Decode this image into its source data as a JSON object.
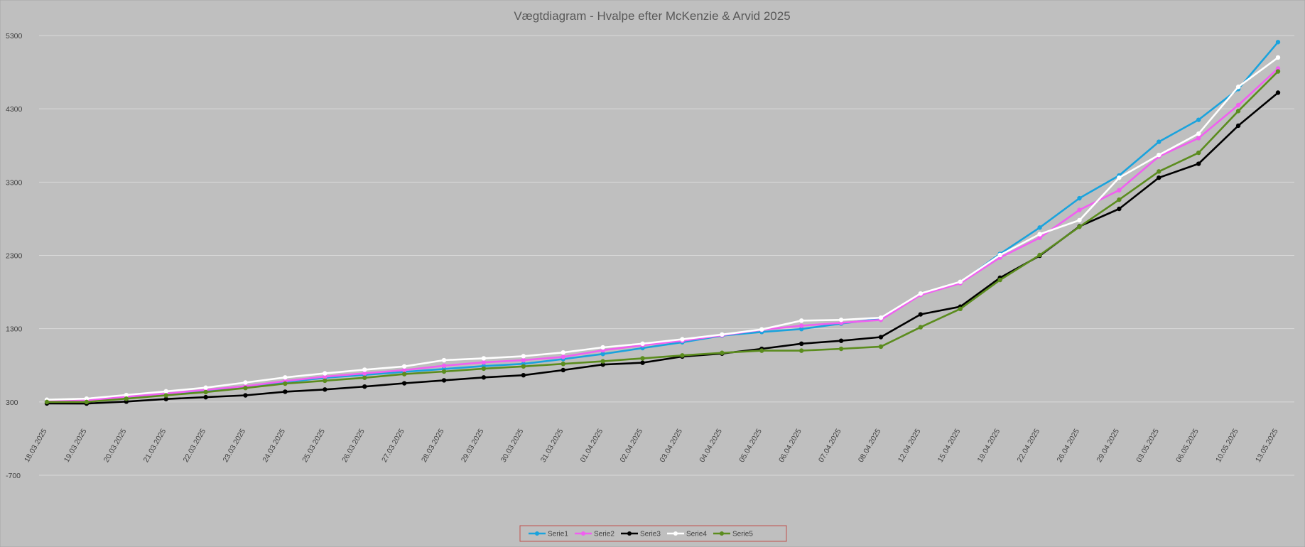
{
  "chart_data": {
    "type": "line",
    "title": "Vægtdiagram - Hvalpe efter McKenzie & Arvid 2025",
    "xlabel": "",
    "ylabel": "",
    "ylim": [
      -700,
      5300
    ],
    "yticks": [
      -700,
      300,
      1300,
      2300,
      3300,
      4300,
      5300
    ],
    "grid": true,
    "legend_position": "bottom",
    "background": "#bfbfbf",
    "categories": [
      "18.03.2025",
      "19.03.2025",
      "20.03.2025",
      "21.03.2025",
      "22.03.2025",
      "23.03.2025",
      "24.03.2025",
      "25.03.2025",
      "26.03.2025",
      "27.03.2025",
      "28.03.2025",
      "29.03.2025",
      "30.03.2025",
      "31.03.2025",
      "01.04.2025",
      "02.04.2025",
      "03.04.2025",
      "04.04.2025",
      "05.04.2025",
      "06.04.2025",
      "07.04.2025",
      "08.04.2025",
      "12.04.2025",
      "15.04.2025",
      "19.04.2025",
      "22.04.2025",
      "26.04.2025",
      "29.04.2025",
      "03.05.2025",
      "06.05.2025",
      "10.05.2025",
      "13.05.2025"
    ],
    "series": [
      {
        "name": "Serie1",
        "color": "#1aa3dd",
        "values": [
          310,
          318,
          360,
          400,
          450,
          505,
          570,
          630,
          670,
          710,
          750,
          790,
          820,
          885,
          955,
          1035,
          1115,
          1205,
          1255,
          1295,
          1370,
          1435,
          1770,
          1930,
          2320,
          2680,
          3080,
          3390,
          3850,
          4150,
          4570,
          5210
        ]
      },
      {
        "name": "Serie2",
        "color": "#f060f0",
        "values": [
          315,
          322,
          370,
          415,
          465,
          515,
          585,
          645,
          690,
          735,
          795,
          840,
          870,
          915,
          1005,
          1075,
          1135,
          1210,
          1285,
          1340,
          1380,
          1420,
          1760,
          1920,
          2270,
          2540,
          2920,
          3190,
          3650,
          3900,
          4350,
          4850
        ]
      },
      {
        "name": "Serie3",
        "color": "#000000",
        "values": [
          280,
          278,
          305,
          340,
          365,
          390,
          440,
          470,
          510,
          555,
          595,
          635,
          665,
          735,
          810,
          835,
          920,
          960,
          1025,
          1095,
          1135,
          1185,
          1495,
          1600,
          1995,
          2295,
          2695,
          2935,
          3360,
          3550,
          4070,
          4520
        ]
      },
      {
        "name": "Serie4",
        "color": "#ffffff",
        "values": [
          330,
          345,
          395,
          445,
          495,
          565,
          635,
          690,
          740,
          785,
          870,
          895,
          925,
          975,
          1045,
          1095,
          1155,
          1220,
          1290,
          1410,
          1420,
          1450,
          1780,
          1940,
          2305,
          2590,
          2780,
          3360,
          3670,
          3960,
          4600,
          5000
        ]
      },
      {
        "name": "Serie5",
        "color": "#5b8c1e",
        "values": [
          300,
          300,
          345,
          390,
          435,
          490,
          550,
          590,
          630,
          680,
          715,
          755,
          785,
          820,
          855,
          895,
          935,
          970,
          1000,
          1000,
          1025,
          1055,
          1320,
          1570,
          1965,
          2305,
          2690,
          3060,
          3445,
          3700,
          4270,
          4810
        ]
      }
    ]
  }
}
